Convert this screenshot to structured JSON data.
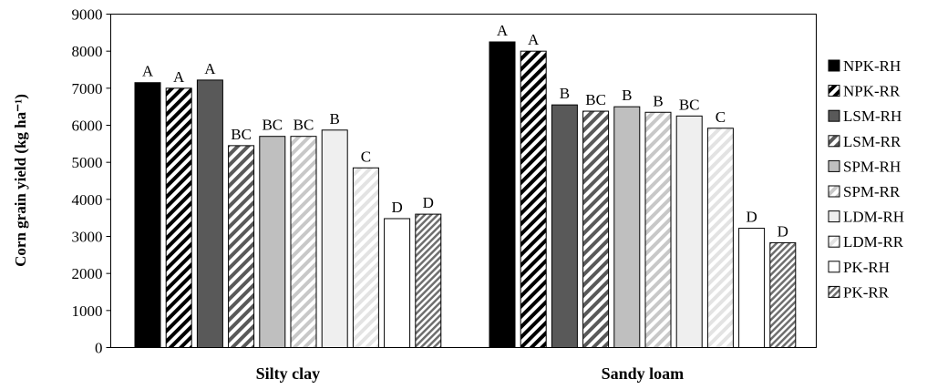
{
  "chart_data": {
    "type": "bar",
    "title": "",
    "xlabel": "",
    "ylabel": "Corn grain yield (kg ha⁻¹)",
    "ylim": [
      0,
      9000
    ],
    "yticks": [
      0,
      1000,
      2000,
      3000,
      4000,
      5000,
      6000,
      7000,
      8000,
      9000
    ],
    "grid": false,
    "legend_position": "right",
    "categories": [
      "Silty clay",
      "Sandy loam"
    ],
    "series": [
      {
        "name": "NPK-RH",
        "pattern": "solid",
        "color": "#000000",
        "values": [
          7150,
          8250
        ],
        "labels": [
          "A",
          "A"
        ]
      },
      {
        "name": "NPK-RR",
        "pattern": "hatch-dense-dark",
        "color": "#000000",
        "values": [
          7000,
          8000
        ],
        "labels": [
          "A",
          "A"
        ]
      },
      {
        "name": "LSM-RH",
        "pattern": "solid",
        "color": "#595959",
        "values": [
          7220,
          6550
        ],
        "labels": [
          "A",
          "B"
        ]
      },
      {
        "name": "LSM-RR",
        "pattern": "hatch-dark-gray",
        "color": "#595959",
        "values": [
          5450,
          6380
        ],
        "labels": [
          "BC",
          "BC"
        ]
      },
      {
        "name": "SPM-RH",
        "pattern": "solid",
        "color": "#bfbfbf",
        "values": [
          5700,
          6500
        ],
        "labels": [
          "BC",
          "B"
        ]
      },
      {
        "name": "SPM-RR",
        "pattern": "hatch-light-gray",
        "color": "#bfbfbf",
        "values": [
          5700,
          6350
        ],
        "labels": [
          "BC",
          "B"
        ]
      },
      {
        "name": "LDM-RH",
        "pattern": "solid",
        "color": "#efefef",
        "values": [
          5870,
          6250
        ],
        "labels": [
          "B",
          "BC"
        ]
      },
      {
        "name": "LDM-RR",
        "pattern": "hatch-very-light",
        "color": "#e0e0e0",
        "values": [
          4850,
          5920
        ],
        "labels": [
          "C",
          "C"
        ]
      },
      {
        "name": "PK-RH",
        "pattern": "solid",
        "color": "#ffffff",
        "values": [
          3480,
          3220
        ],
        "labels": [
          "D",
          "D"
        ]
      },
      {
        "name": "PK-RR",
        "pattern": "hatch-fine",
        "color": "#7f7f7f",
        "values": [
          3600,
          2830
        ],
        "labels": [
          "D",
          "D"
        ]
      }
    ]
  }
}
